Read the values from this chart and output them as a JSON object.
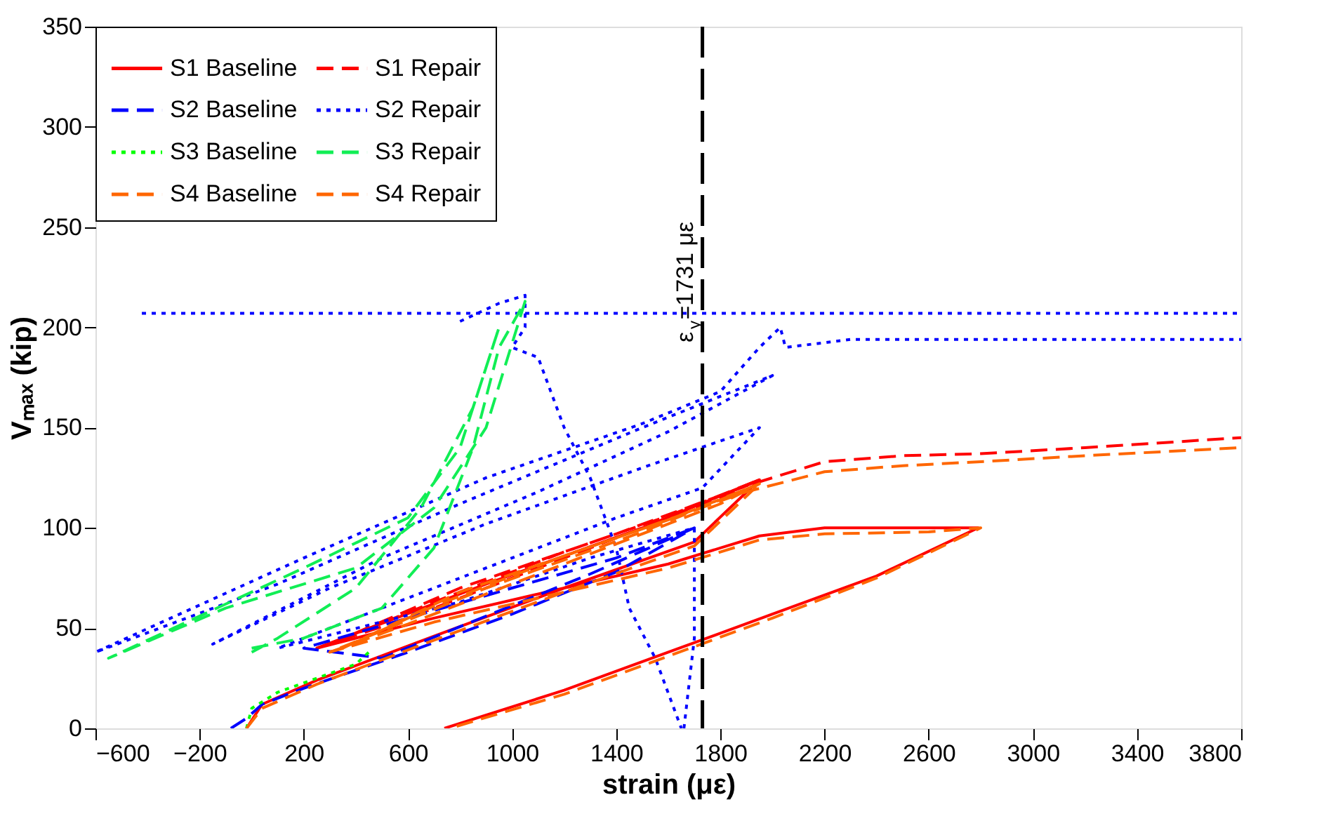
{
  "chart_data": {
    "type": "line",
    "xlabel": "strain (με)",
    "ylabel": "Vₘₐₓ (kip)",
    "xlim": [
      -600,
      3800
    ],
    "ylim": [
      0,
      350
    ],
    "xticks": [
      -600,
      -200,
      200,
      600,
      1000,
      1400,
      1800,
      2200,
      2600,
      3000,
      3400,
      3800
    ],
    "yticks": [
      0,
      50,
      100,
      150,
      200,
      250,
      300,
      350
    ],
    "grid": false,
    "legend": "top left",
    "ref_lines": [
      {
        "axis": "x",
        "value": 1731,
        "label": "ε$_{y}$=1731 με",
        "color": "#000000",
        "line_style": "dashed"
      }
    ],
    "series": [
      {
        "name": "S1 Baseline",
        "color": "#ff0000",
        "line_style": "solid",
        "x": [
          -20,
          40,
          250,
          700,
          1200,
          1700,
          1950,
          1500,
          900,
          250,
          700,
          1200,
          1600,
          1950,
          2200,
          2600,
          2790,
          2400,
          2000,
          1600,
          1200,
          740
        ],
        "values": [
          0,
          12,
          24,
          46,
          70,
          93,
          124,
          100,
          72,
          40,
          55,
          70,
          82,
          96,
          100,
          100,
          100,
          76,
          57,
          38,
          19,
          0
        ]
      },
      {
        "name": "S1 Repair",
        "color": "#ff0000",
        "line_style": "dashed",
        "x": [
          250,
          600,
          1000,
          1400,
          1800,
          1950,
          1600,
          1200,
          700,
          300,
          800,
          1400,
          1900,
          2200,
          2500,
          2800,
          3200,
          3800
        ],
        "values": [
          40,
          55,
          75,
          95,
          115,
          124,
          106,
          88,
          63,
          42,
          70,
          97,
          121,
          133,
          136,
          137,
          140,
          145
        ]
      },
      {
        "name": "S2 Baseline",
        "color": "#0000ff",
        "line_style": "dashed",
        "x": [
          -80,
          -20,
          40,
          200,
          600,
          1000,
          1400,
          1700,
          1300,
          900,
          500,
          200,
          600,
          1000,
          1400,
          1700
        ],
        "values": [
          0,
          5,
          12,
          20,
          38,
          57,
          78,
          100,
          77,
          56,
          35,
          40,
          55,
          70,
          85,
          100
        ]
      },
      {
        "name": "S2 Repair",
        "color": "#0000ff",
        "line_style": "dotted",
        "x": [
          -422,
          400,
          1000,
          2000,
          3800,
          null,
          800,
          950,
          1050,
          1050,
          1000,
          1100,
          1200,
          1300,
          1400,
          1450,
          1550,
          1650,
          null,
          1660,
          1700,
          1700,
          1300,
          800,
          100,
          800,
          1400,
          1731,
          1950,
          1500,
          900,
          300,
          -150,
          500,
          1100,
          1600,
          2000,
          1500,
          800,
          100,
          -600,
          200,
          900,
          1500,
          1800,
          1950,
          2030,
          2050,
          2300,
          3800
        ],
        "values": [
          207,
          207,
          207,
          207,
          207,
          null,
          203,
          212,
          216,
          200,
          190,
          185,
          150,
          125,
          90,
          60,
          35,
          0,
          null,
          0,
          45,
          100,
          85,
          63,
          40,
          75,
          105,
          120,
          150,
          130,
          102,
          70,
          42,
          85,
          118,
          148,
          176,
          150,
          112,
          72,
          38,
          85,
          125,
          152,
          168,
          190,
          200,
          190,
          194,
          194
        ]
      },
      {
        "name": "S3 Baseline",
        "color": "#00ff00",
        "line_style": "dotted",
        "x": [
          -20,
          0,
          100,
          250,
          400,
          450
        ],
        "values": [
          0,
          10,
          18,
          25,
          32,
          38
        ]
      },
      {
        "name": "S3 Repair",
        "color": "#11ee55",
        "line_style": "dashed",
        "x": [
          0,
          200,
          500,
          700,
          850,
          950,
          1050,
          900,
          700,
          400,
          -100,
          -550,
          -300,
          200,
          600,
          800,
          950,
          850,
          650,
          400,
          100,
          0
        ],
        "values": [
          40,
          45,
          60,
          90,
          140,
          190,
          213,
          150,
          110,
          80,
          60,
          35,
          50,
          80,
          105,
          140,
          200,
          160,
          110,
          70,
          45,
          38
        ]
      },
      {
        "name": "S4 Baseline",
        "color": "#ff6600",
        "line_style": "dashed",
        "x": [
          -20,
          40,
          250,
          700,
          1200,
          1700,
          1950,
          1500,
          900,
          300,
          700,
          1200,
          1600,
          1950,
          2200,
          2600,
          2800,
          2400,
          2000,
          1600,
          1200,
          760
        ],
        "values": [
          0,
          10,
          22,
          44,
          68,
          91,
          122,
          98,
          70,
          38,
          53,
          68,
          80,
          94,
          97,
          98,
          100,
          75,
          55,
          36,
          17,
          0
        ]
      },
      {
        "name": "S4 Repair",
        "color": "#ff6600",
        "line_style": "dashed",
        "x": [
          300,
          600,
          1000,
          1400,
          1800,
          1950,
          1600,
          1200,
          700,
          350,
          800,
          1400,
          1900,
          2200,
          2500,
          2800,
          3200,
          3800
        ],
        "values": [
          38,
          52,
          72,
          92,
          112,
          122,
          104,
          86,
          61,
          40,
          68,
          95,
          118,
          128,
          131,
          133,
          136,
          140
        ]
      }
    ]
  }
}
